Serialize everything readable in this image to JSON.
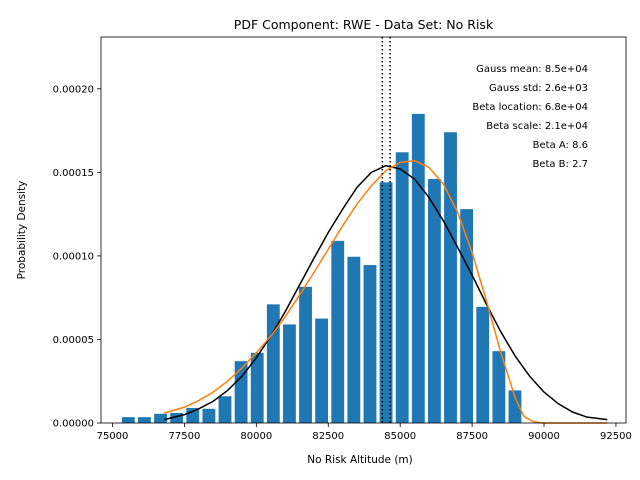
{
  "chart_data": {
    "type": "bar",
    "title": "PDF Component: RWE - Data Set: No Risk",
    "xlabel": "No Risk Altitude (m)",
    "ylabel": "Probability Density",
    "xlim": [
      74600,
      92850
    ],
    "ylim": [
      0,
      0.000231
    ],
    "x_ticks": [
      75000,
      77500,
      80000,
      82500,
      85000,
      87500,
      90000,
      92500
    ],
    "y_ticks": [
      0,
      5e-05,
      0.0001,
      0.00015,
      0.0002
    ],
    "x_tick_labels": [
      "75000",
      "77500",
      "80000",
      "82500",
      "85000",
      "87500",
      "90000",
      "92500"
    ],
    "y_tick_labels": [
      "0.00000",
      "0.00005",
      "0.00010",
      "0.00015",
      "0.00020"
    ],
    "bar_color": "#1f77b4",
    "bin_width": 558,
    "bars": [
      {
        "x": 75550,
        "height": 3.5e-06
      },
      {
        "x": 76110,
        "height": 3.5e-06
      },
      {
        "x": 76670,
        "height": 5.5e-06
      },
      {
        "x": 77230,
        "height": 6e-06
      },
      {
        "x": 77790,
        "height": 9e-06
      },
      {
        "x": 78350,
        "height": 8.5e-06
      },
      {
        "x": 78910,
        "height": 1.6e-05
      },
      {
        "x": 79470,
        "height": 3.7e-05
      },
      {
        "x": 80030,
        "height": 4.2e-05
      },
      {
        "x": 80590,
        "height": 7.1e-05
      },
      {
        "x": 81150,
        "height": 5.9e-05
      },
      {
        "x": 81710,
        "height": 8.15e-05
      },
      {
        "x": 82270,
        "height": 6.25e-05
      },
      {
        "x": 82830,
        "height": 0.000109
      },
      {
        "x": 83390,
        "height": 9.95e-05
      },
      {
        "x": 83950,
        "height": 9.45e-05
      },
      {
        "x": 84510,
        "height": 0.000144
      },
      {
        "x": 85070,
        "height": 0.000162
      },
      {
        "x": 85630,
        "height": 0.000185
      },
      {
        "x": 86190,
        "height": 0.000146
      },
      {
        "x": 86750,
        "height": 0.000174
      },
      {
        "x": 87310,
        "height": 0.000128
      },
      {
        "x": 87870,
        "height": 6.95e-05
      },
      {
        "x": 88430,
        "height": 4.3e-05
      },
      {
        "x": 88990,
        "height": 1.95e-05
      }
    ],
    "curves": [
      {
        "color": "#000000",
        "x": [
          76800,
          77500,
          78000,
          78500,
          79000,
          79500,
          80000,
          80500,
          81000,
          81500,
          82000,
          82500,
          83000,
          83500,
          84000,
          84500,
          85000,
          85500,
          86000,
          86500,
          87000,
          87500,
          88000,
          88500,
          89000,
          89500,
          90000,
          90500,
          91000,
          91500,
          92200
        ],
        "y": [
          2e-06,
          5e-06,
          8.5e-06,
          1.3e-05,
          1.95e-05,
          2.8e-05,
          3.9e-05,
          5.2e-05,
          6.65e-05,
          8.25e-05,
          9.85e-05,
          0.000114,
          0.000128,
          0.000141,
          0.00015,
          0.000154,
          0.000152,
          0.000146,
          0.000135,
          0.000121,
          0.000105,
          8.85e-05,
          7.1e-05,
          5.45e-05,
          4e-05,
          2.8e-05,
          1.85e-05,
          1.15e-05,
          6.5e-06,
          3.5e-06,
          2e-06
        ]
      },
      {
        "color": "#ff7f0e",
        "x": [
          76800,
          77500,
          78000,
          78500,
          79000,
          79500,
          80000,
          80500,
          81000,
          81500,
          82000,
          82500,
          83000,
          83500,
          84000,
          84500,
          85000,
          85500,
          86000,
          86500,
          87000,
          87500,
          88000,
          88500,
          89000,
          89300,
          89600,
          89800,
          90000,
          91000,
          92200
        ],
        "y": [
          6e-06,
          9.5e-06,
          1.35e-05,
          1.85e-05,
          2.5e-05,
          3.3e-05,
          4.2e-05,
          5.2e-05,
          6.35e-05,
          7.65e-05,
          9e-05,
          0.000104,
          0.000118,
          0.000131,
          0.000142,
          0.000151,
          0.000156,
          0.000157,
          0.000153,
          0.000143,
          0.000126,
          0.000102,
          7.3e-05,
          4.2e-05,
          1.5e-05,
          4e-06,
          1e-06,
          3e-07,
          0,
          0,
          0
        ]
      }
    ],
    "vlines": [
      {
        "x": 84380,
        "style": "dotted",
        "color": "#000000"
      },
      {
        "x": 84650,
        "style": "dotted",
        "color": "#000000"
      }
    ],
    "annotations": [
      "Gauss mean: 8.5e+04",
      "Gauss std: 2.6e+03",
      "Beta location: 6.8e+04",
      "Beta scale: 2.1e+04",
      "Beta A: 8.6",
      "Beta B: 2.7"
    ],
    "grid": false
  }
}
